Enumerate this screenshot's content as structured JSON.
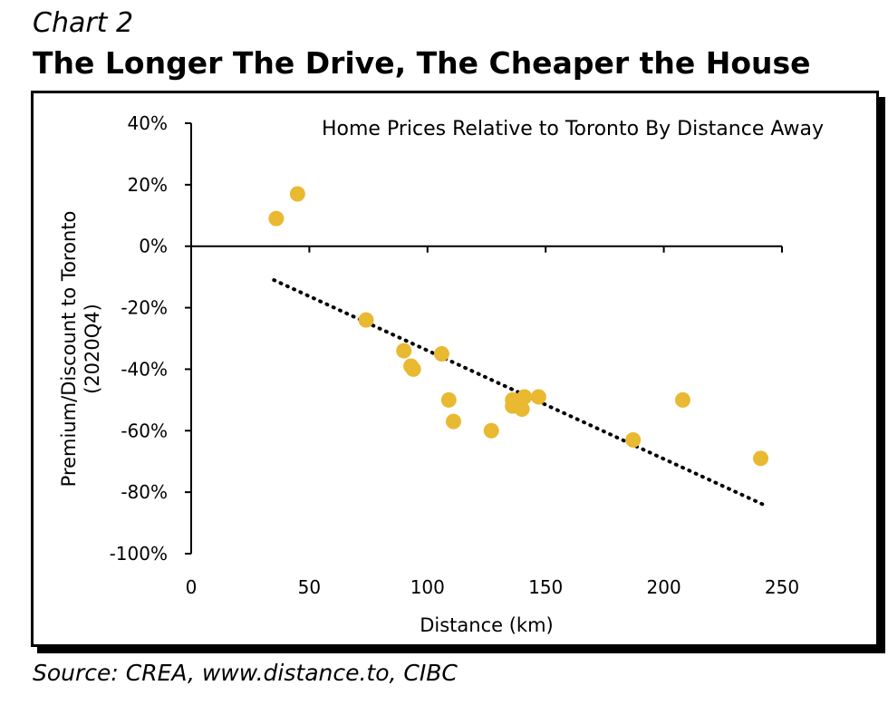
{
  "header": {
    "kicker": "Chart 2",
    "title": "The Longer The Drive, The Cheaper the House"
  },
  "source": "Source: CREA, www.distance.to, CIBC",
  "chart_data": {
    "type": "scatter",
    "title": "Home Prices Relative to Toronto By Distance Away",
    "xlabel": "Distance (km)",
    "ylabel": [
      "Premium/Discount to Toronto",
      "(2020Q4)"
    ],
    "xlim": [
      0,
      250
    ],
    "ylim": [
      -100,
      40
    ],
    "xticks": [
      0,
      50,
      100,
      150,
      200,
      250
    ],
    "yticks": [
      40,
      20,
      0,
      -20,
      -40,
      -60,
      -80,
      -100
    ],
    "ytick_labels": [
      "40%",
      "20%",
      "0%",
      "-20%",
      "-40%",
      "-60%",
      "-80%",
      "-100%"
    ],
    "grid": false,
    "legend": "none",
    "point_color": "#E8B931",
    "trendline_color": "#000000",
    "points": [
      {
        "x": 36,
        "y": 9
      },
      {
        "x": 45,
        "y": 17
      },
      {
        "x": 74,
        "y": -24
      },
      {
        "x": 90,
        "y": -34
      },
      {
        "x": 93,
        "y": -39
      },
      {
        "x": 94,
        "y": -40
      },
      {
        "x": 106,
        "y": -35
      },
      {
        "x": 109,
        "y": -50
      },
      {
        "x": 111,
        "y": -57
      },
      {
        "x": 127,
        "y": -60
      },
      {
        "x": 136,
        "y": -50
      },
      {
        "x": 136,
        "y": -52
      },
      {
        "x": 139,
        "y": -51
      },
      {
        "x": 140,
        "y": -53
      },
      {
        "x": 141,
        "y": -49
      },
      {
        "x": 147,
        "y": -49
      },
      {
        "x": 187,
        "y": -63
      },
      {
        "x": 208,
        "y": -50
      },
      {
        "x": 241,
        "y": -69
      }
    ],
    "trendline": {
      "x": [
        35,
        242
      ],
      "y": [
        -11,
        -84
      ]
    }
  }
}
